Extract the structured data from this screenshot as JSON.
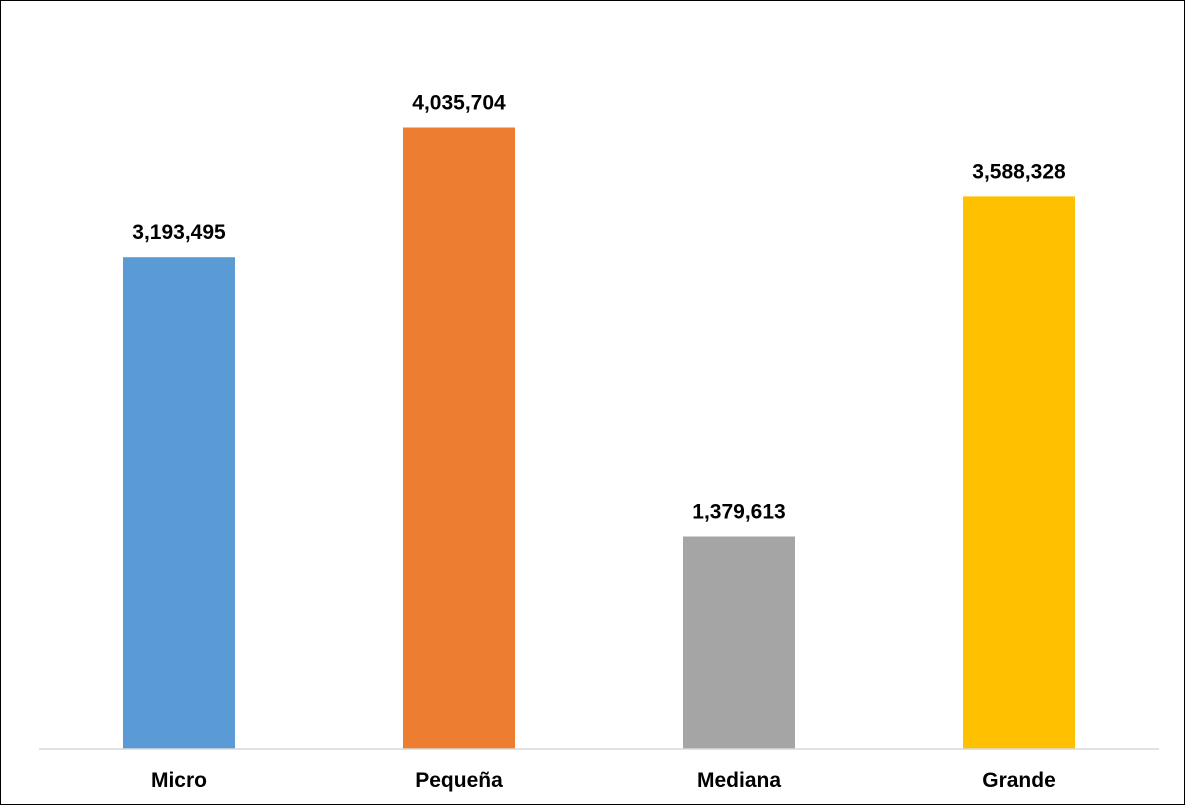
{
  "chart_data": {
    "type": "bar",
    "title": "",
    "xlabel": "",
    "ylabel": "",
    "categories": [
      "Micro",
      "Pequeña",
      "Mediana",
      "Grande"
    ],
    "values": [
      3193495,
      4035704,
      1379613,
      3588328
    ],
    "value_labels": [
      "3,193,495",
      "4,035,704",
      "1,379,613",
      "3,588,328"
    ],
    "colors": [
      "#5B9BD5",
      "#ED7D31",
      "#A5A5A5",
      "#FFC000"
    ],
    "ylim": [
      0,
      4500000
    ],
    "grid": false,
    "legend": "none",
    "axis_line_color": "#D9D9D9"
  }
}
